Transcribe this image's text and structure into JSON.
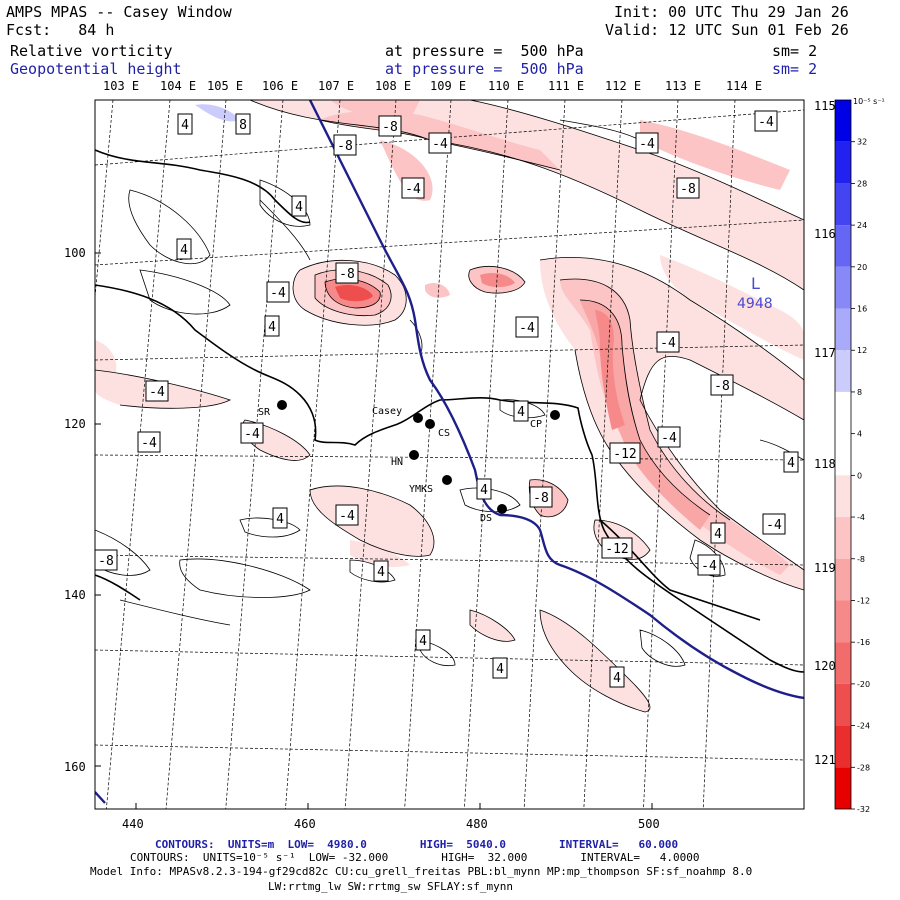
{
  "header": {
    "title": "AMPS MPAS -- Casey Window",
    "fcst": "Fcst:   84 h",
    "init": "Init: 00 UTC Thu 29 Jan 26",
    "valid": "Valid: 12 UTC Sun 01 Feb 26",
    "field1": {
      "name": "Relative vorticity",
      "level": "at pressure =  500 hPa",
      "sm": "sm= 2"
    },
    "field2": {
      "name": "Geopotential height",
      "level": "at pressure =  500 hPa",
      "sm": "sm= 2"
    }
  },
  "top_longitudes": [
    "103 E",
    "104 E",
    "105 E",
    "106 E",
    "107 E",
    "108 E",
    "109 E",
    "110 E",
    "111 E",
    "112 E",
    "113 E",
    "114 E"
  ],
  "right_longitudes": [
    "115 E",
    "116 E",
    "117 E",
    "118 E",
    "119 E",
    "120 E",
    "121 E"
  ],
  "x_ticks": [
    "440",
    "460",
    "480",
    "500"
  ],
  "y_ticks": [
    "100",
    "120",
    "140",
    "160"
  ],
  "colorbar": {
    "unit": "10⁻⁵ s⁻¹",
    "labels": [
      "32",
      "28",
      "24",
      "20",
      "16",
      "12",
      "8",
      "4",
      "0",
      "-4",
      "-8",
      "-12",
      "-16",
      "-20",
      "-24",
      "-28",
      "-32"
    ],
    "colors": [
      "#0000e6",
      "#2222f0",
      "#4444f2",
      "#6666f5",
      "#8888f7",
      "#aaaafa",
      "#ccccfc",
      "#ffffff",
      "#ffffff",
      "#fde0e0",
      "#fcc4c4",
      "#f9a6a6",
      "#f68a8a",
      "#f26c6c",
      "#ee4e4e",
      "#ea2e2e",
      "#e60000"
    ]
  },
  "stations": [
    {
      "name": "SR"
    },
    {
      "name": "Casey"
    },
    {
      "name": "CS"
    },
    {
      "name": "HN"
    },
    {
      "name": "YMKS"
    },
    {
      "name": "DS"
    },
    {
      "name": "CP"
    }
  ],
  "low_center": {
    "symbol": "L",
    "value": "4948"
  },
  "contour_labels": [
    "4",
    "8",
    "-8",
    "-8",
    "-4",
    "-4",
    "-4",
    "-4",
    "-8",
    "4",
    "4",
    "-8",
    "-4",
    "4",
    "-4",
    "-4",
    "-4",
    "-8",
    "4",
    "-4",
    "-4",
    "-4",
    "-12",
    "4",
    "4",
    "-8",
    "4",
    "-4",
    "4",
    "-4",
    "-12",
    "-8",
    "4",
    "-4",
    "4",
    "4",
    "4",
    "-4",
    "4",
    "-4"
  ],
  "footer": {
    "contours1": "CONTOURS:  UNITS=m  LOW=  4980.0        HIGH=  5040.0        INTERVAL=   60.000",
    "contours2": "CONTOURS:  UNITS=10⁻⁵ s⁻¹  LOW= -32.000        HIGH=  32.000        INTERVAL=   4.0000",
    "model_info": "Model Info: MPASv8.2.3-194-gf29cd82c CU:cu_grell_freitas PBL:bl_mynn MP:mp_thompson SF:sf_noahmp 8.0",
    "model_info2": "LW:rrtmg_lw SW:rrtmg_sw SFLAY:sf_mynn"
  }
}
